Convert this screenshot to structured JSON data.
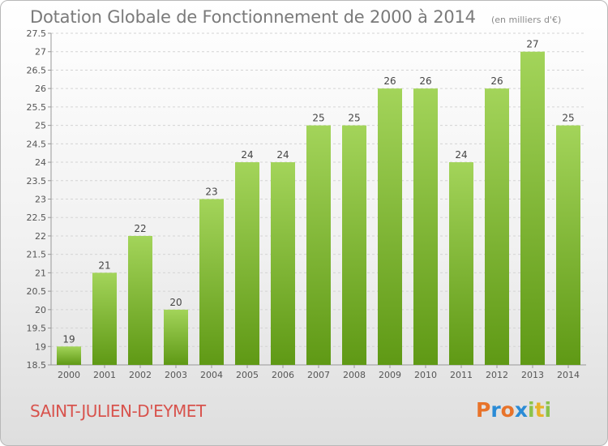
{
  "header": {
    "title": "Dotation Globale de Fonctionnement de 2000 à 2014",
    "unit": "(en milliers d'€)"
  },
  "footer": {
    "place": "SAINT-JULIEN-D'EYMET",
    "brand": "Proxiti"
  },
  "colors": {
    "bar_top": "#a3d45a",
    "bar_bottom": "#5f9915",
    "place_text": "#d8534d",
    "brand_letters": [
      "#e8732a",
      "#2a8bd6",
      "#e8732a",
      "#2a8bd6",
      "#8bc34a",
      "#e8b22a",
      "#8bc34a"
    ]
  },
  "chart_data": {
    "type": "bar",
    "title": "Dotation Globale de Fonctionnement de 2000 à 2014",
    "categories": [
      "2000",
      "2001",
      "2002",
      "2003",
      "2004",
      "2005",
      "2006",
      "2007",
      "2008",
      "2009",
      "2010",
      "2011",
      "2012",
      "2013",
      "2014"
    ],
    "values": [
      19,
      21,
      22,
      20,
      23,
      24,
      24,
      25,
      25,
      26,
      26,
      24,
      26,
      27,
      25
    ],
    "ylim": [
      18.5,
      27.5
    ],
    "yticks": [
      "18.5",
      "19",
      "19.5",
      "20",
      "20.5",
      "21",
      "21.5",
      "22",
      "22.5",
      "23",
      "23.5",
      "24",
      "24.5",
      "25",
      "25.5",
      "26",
      "26.5",
      "27",
      "27.5"
    ],
    "grid": true,
    "xlabel": "",
    "ylabel": ""
  }
}
